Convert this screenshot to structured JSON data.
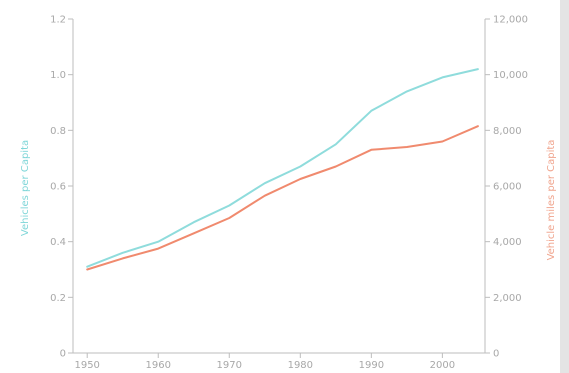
{
  "chart_data": {
    "type": "line",
    "title": "",
    "xlabel": "",
    "ylabel": "Vehicles per Capita",
    "y2label": "Vehicle miles per Capita",
    "x_ticks": [
      "1950",
      "1960",
      "1970",
      "1980",
      "1990",
      "2000"
    ],
    "xlim": [
      1948,
      2006
    ],
    "ylim": [
      0,
      1.2
    ],
    "y_ticks": [
      "0",
      "0.2",
      "0.4",
      "0.6",
      "0.8",
      "1.0",
      "1.2"
    ],
    "y2lim": [
      0,
      12000
    ],
    "y2_ticks": [
      "0",
      "2,000",
      "4,000",
      "6,000",
      "8,000",
      "10,000",
      "12,000"
    ],
    "grid": false,
    "series": [
      {
        "axis": "left",
        "color": "#8fdcdc",
        "x": [
          1950,
          1955,
          1960,
          1965,
          1970,
          1975,
          1980,
          1985,
          1990,
          1995,
          2000,
          2005
        ],
        "y": [
          0.31,
          0.36,
          0.4,
          0.47,
          0.53,
          0.61,
          0.67,
          0.75,
          0.87,
          0.94,
          0.99,
          1.02
        ]
      },
      {
        "axis": "right",
        "color": "#f08a6e",
        "x": [
          1950,
          1955,
          1960,
          1965,
          1970,
          1975,
          1980,
          1985,
          1990,
          1995,
          2000,
          2005
        ],
        "y": [
          3000,
          3400,
          3750,
          4300,
          4850,
          5650,
          6250,
          6700,
          7300,
          7400,
          7600,
          8150
        ]
      }
    ]
  }
}
